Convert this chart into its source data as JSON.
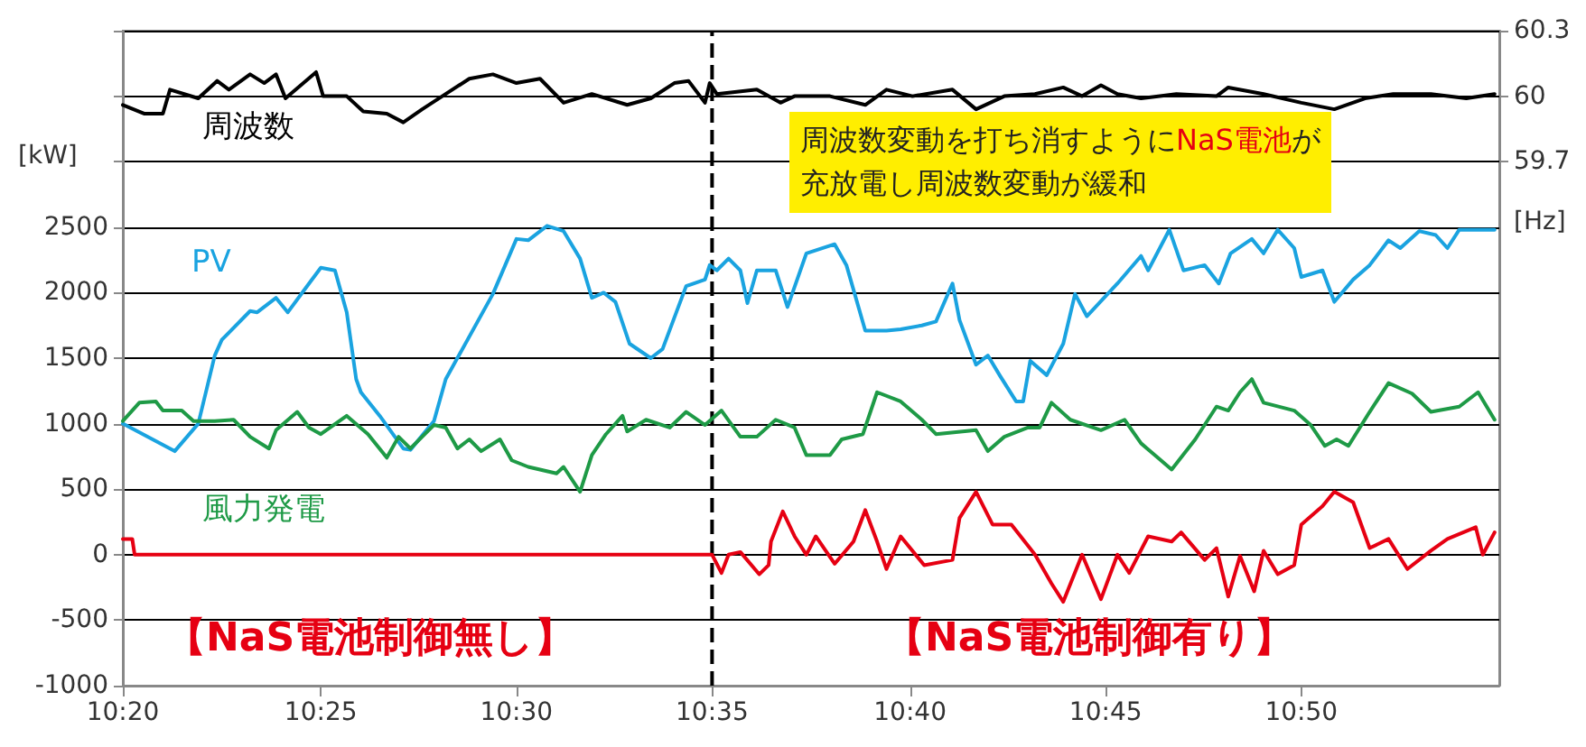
{
  "chart_data": {
    "type": "line",
    "xlim": [
      10.333,
      10.917
    ],
    "xticks": [
      {
        "value": 10.333,
        "label": "10:20"
      },
      {
        "value": 10.417,
        "label": "10:25"
      },
      {
        "value": 10.5,
        "label": "10:30"
      },
      {
        "value": 10.583,
        "label": "10:35"
      },
      {
        "value": 10.667,
        "label": "10:40"
      },
      {
        "value": 10.75,
        "label": "10:45"
      },
      {
        "value": 10.833,
        "label": "10:50"
      }
    ],
    "ylim": [
      -1000,
      4000
    ],
    "yticks": [
      -1000,
      -500,
      0,
      500,
      1000,
      1500,
      2000,
      2500,
      {
        "value": 3000,
        "label": null
      },
      {
        "value": 3500,
        "label": null
      },
      {
        "value": 4000,
        "label": null
      }
    ],
    "y2lim": [
      57.3,
      60.3
    ],
    "y2ticks": [
      59.7,
      60,
      60.3
    ],
    "ylabel": "[kW]",
    "y2label": "[Hz]",
    "grid": "y",
    "legend": false,
    "marker": "none",
    "line_style": "solid",
    "ref_lines": [
      {
        "axis": "x",
        "value": 10.583,
        "color": "#000000",
        "line_style": "dashed"
      }
    ],
    "annotations": [
      "周波数変動を打ち消すように",
      "NaS電池",
      "が",
      "充放電し周波数変動が緩和",
      "【NaS電池制御無し】",
      "【NaS電池制御有り】"
    ],
    "series": [
      {
        "name": "周波数",
        "axis": "y2",
        "color": "#000000",
        "x": [
          10.333,
          10.342,
          10.35,
          10.353,
          10.365,
          10.373,
          10.378,
          10.387,
          10.393,
          10.398,
          10.402,
          10.415,
          10.418,
          10.428,
          10.435,
          10.445,
          10.452,
          10.46,
          10.47,
          10.48,
          10.49,
          10.5,
          10.51,
          10.52,
          10.532,
          10.547,
          10.557,
          10.567,
          10.573,
          10.58,
          10.582,
          10.585,
          10.602,
          10.612,
          10.618,
          10.633,
          10.648,
          10.657,
          10.668,
          10.685,
          10.695,
          10.707,
          10.72,
          10.732,
          10.74,
          10.748,
          10.755,
          10.765,
          10.78,
          10.797,
          10.802,
          10.817,
          10.833,
          10.847,
          10.86,
          10.872,
          10.888,
          10.903,
          10.915
        ],
        "values": [
          59.96,
          59.92,
          59.92,
          60.03,
          59.99,
          60.07,
          60.03,
          60.1,
          60.06,
          60.1,
          59.99,
          60.11,
          60.0,
          60.0,
          59.93,
          59.92,
          59.88,
          59.94,
          60.01,
          60.08,
          60.1,
          60.06,
          60.08,
          59.97,
          60.01,
          59.96,
          59.99,
          60.06,
          60.07,
          59.97,
          60.06,
          60.01,
          60.03,
          59.97,
          60.0,
          60.0,
          59.96,
          60.03,
          60.0,
          60.03,
          59.94,
          60.0,
          60.01,
          60.04,
          60.0,
          60.05,
          60.01,
          59.99,
          60.01,
          60.0,
          60.04,
          60.01,
          59.97,
          59.94,
          59.99,
          60.01,
          60.01,
          59.99,
          60.01
        ]
      },
      {
        "name": "PV",
        "color": "#1aa3e0",
        "x": [
          10.333,
          10.355,
          10.365,
          10.372,
          10.375,
          10.387,
          10.39,
          10.398,
          10.403,
          10.412,
          10.417,
          10.423,
          10.428,
          10.432,
          10.434,
          10.442,
          10.452,
          10.455,
          10.465,
          10.47,
          10.49,
          10.5,
          10.505,
          10.513,
          10.52,
          10.527,
          10.532,
          10.537,
          10.542,
          10.548,
          10.557,
          10.562,
          10.572,
          10.58,
          10.582,
          10.585,
          10.59,
          10.595,
          10.598,
          10.602,
          10.61,
          10.615,
          10.623,
          10.635,
          10.64,
          10.648,
          10.657,
          10.663,
          10.672,
          10.678,
          10.685,
          10.688,
          10.695,
          10.7,
          10.705,
          10.712,
          10.715,
          10.718,
          10.725,
          10.732,
          10.737,
          10.742,
          10.755,
          10.765,
          10.768,
          10.777,
          10.783,
          10.792,
          10.798,
          10.803,
          10.812,
          10.817,
          10.823,
          10.83,
          10.833,
          10.842,
          10.847,
          10.855,
          10.862,
          10.87,
          10.875,
          10.883,
          10.89,
          10.895,
          10.9,
          10.915
        ],
        "values": [
          1000,
          790,
          1000,
          1520,
          1640,
          1860,
          1850,
          1960,
          1850,
          2070,
          2190,
          2170,
          1850,
          1340,
          1240,
          1060,
          810,
          800,
          1020,
          1340,
          1990,
          2410,
          2400,
          2510,
          2470,
          2260,
          1960,
          2000,
          1930,
          1610,
          1500,
          1570,
          2050,
          2100,
          2210,
          2170,
          2260,
          2170,
          1920,
          2170,
          2170,
          1890,
          2300,
          2370,
          2210,
          1710,
          1710,
          1720,
          1750,
          1780,
          2070,
          1790,
          1450,
          1520,
          1370,
          1170,
          1170,
          1480,
          1370,
          1610,
          1990,
          1820,
          2070,
          2280,
          2170,
          2480,
          2170,
          2210,
          2070,
          2300,
          2410,
          2300,
          2480,
          2340,
          2120,
          2170,
          1930,
          2100,
          2210,
          2400,
          2340,
          2470,
          2440,
          2340,
          2480,
          2480
        ]
      },
      {
        "name": "風力発電",
        "color": "#1e9a46",
        "x": [
          10.333,
          10.34,
          10.347,
          10.35,
          10.358,
          10.363,
          10.372,
          10.38,
          10.387,
          10.395,
          10.398,
          10.407,
          10.412,
          10.417,
          10.428,
          10.437,
          10.445,
          10.45,
          10.455,
          10.465,
          10.47,
          10.475,
          10.48,
          10.485,
          10.493,
          10.498,
          10.505,
          10.517,
          10.52,
          10.527,
          10.532,
          10.538,
          10.545,
          10.547,
          10.555,
          10.565,
          10.572,
          10.58,
          10.587,
          10.595,
          10.602,
          10.61,
          10.618,
          10.623,
          10.633,
          10.638,
          10.647,
          10.653,
          10.663,
          10.672,
          10.678,
          10.695,
          10.7,
          10.707,
          10.717,
          10.722,
          10.727,
          10.735,
          10.748,
          10.758,
          10.765,
          10.778,
          10.788,
          10.797,
          10.802,
          10.807,
          10.812,
          10.817,
          10.83,
          10.837,
          10.843,
          10.848,
          10.853,
          10.862,
          10.87,
          10.88,
          10.888,
          10.9,
          10.908,
          10.915
        ],
        "values": [
          1020,
          1160,
          1170,
          1100,
          1100,
          1020,
          1020,
          1030,
          900,
          810,
          950,
          1090,
          970,
          920,
          1060,
          920,
          740,
          900,
          810,
          990,
          970,
          810,
          880,
          790,
          880,
          720,
          670,
          620,
          670,
          480,
          760,
          920,
          1060,
          940,
          1030,
          970,
          1090,
          990,
          1100,
          900,
          900,
          1030,
          970,
          760,
          760,
          880,
          920,
          1240,
          1170,
          1030,
          920,
          950,
          790,
          900,
          970,
          970,
          1160,
          1030,
          950,
          1030,
          850,
          650,
          880,
          1130,
          1100,
          1240,
          1340,
          1160,
          1100,
          990,
          830,
          880,
          830,
          1090,
          1310,
          1230,
          1090,
          1130,
          1240,
          1030
        ]
      },
      {
        "color": "#e60012",
        "x": [
          10.333,
          10.337,
          10.338,
          10.583,
          10.587,
          10.59,
          10.595,
          10.603,
          10.607,
          10.608,
          10.613,
          10.618,
          10.623,
          10.627,
          10.635,
          10.643,
          10.648,
          10.653,
          10.657,
          10.663,
          10.673,
          10.685,
          10.688,
          10.695,
          10.702,
          10.71,
          10.72,
          10.727,
          10.732,
          10.74,
          10.748,
          10.755,
          10.76,
          10.768,
          10.778,
          10.782,
          10.792,
          10.797,
          10.802,
          10.807,
          10.813,
          10.817,
          10.823,
          10.83,
          10.833,
          10.842,
          10.847,
          10.855,
          10.862,
          10.87,
          10.878,
          10.888,
          10.895,
          10.907,
          10.91,
          10.915
        ],
        "values": [
          120,
          120,
          0,
          0,
          -140,
          0,
          20,
          -150,
          -80,
          100,
          330,
          140,
          0,
          140,
          -70,
          100,
          340,
          100,
          -110,
          140,
          -80,
          -40,
          280,
          480,
          230,
          230,
          0,
          -220,
          -360,
          0,
          -340,
          0,
          -140,
          140,
          100,
          170,
          -40,
          50,
          -320,
          -10,
          -280,
          30,
          -150,
          -80,
          230,
          370,
          480,
          400,
          50,
          120,
          -110,
          30,
          120,
          210,
          0,
          170
        ]
      }
    ]
  }
}
